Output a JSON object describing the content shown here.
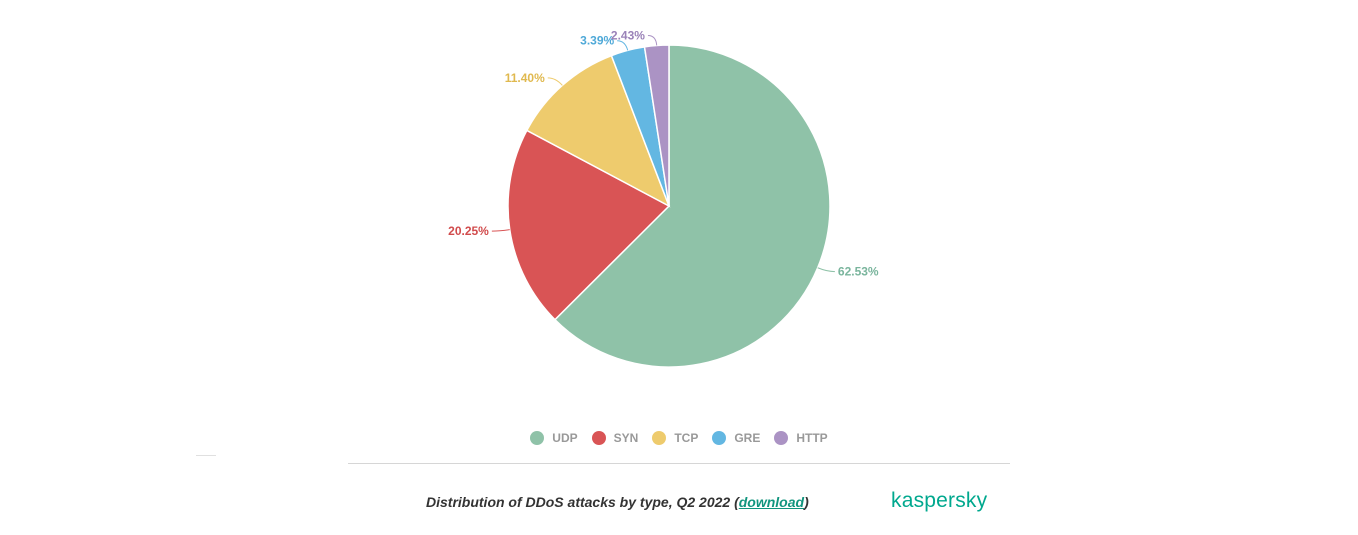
{
  "chart_data": {
    "type": "pie",
    "categories": [
      "UDP",
      "SYN",
      "TCP",
      "GRE",
      "HTTP"
    ],
    "values": [
      62.53,
      20.25,
      11.4,
      3.39,
      2.43
    ],
    "labels": [
      "62.53%",
      "20.25%",
      "11.40%",
      "3.39%",
      "2.43%"
    ],
    "colors": [
      "#8fc2a8",
      "#d95455",
      "#eecb6d",
      "#63b7e2",
      "#ab93c4"
    ],
    "label_colors": [
      "#7ab59d",
      "#d14b4c",
      "#e0b94f",
      "#4fa9d8",
      "#9a82b8"
    ],
    "legend_placement": "bottom",
    "start_angle_deg": 0,
    "direction": "clockwise"
  },
  "legend": {
    "items": [
      "UDP",
      "SYN",
      "TCP",
      "GRE",
      "HTTP"
    ]
  },
  "caption": {
    "text_before": "Distribution of DDoS attacks by type, Q2 2022 (",
    "link": "download",
    "text_after": ")"
  },
  "brand": {
    "logo_text": "kaspersky",
    "color": "#00a88e"
  }
}
